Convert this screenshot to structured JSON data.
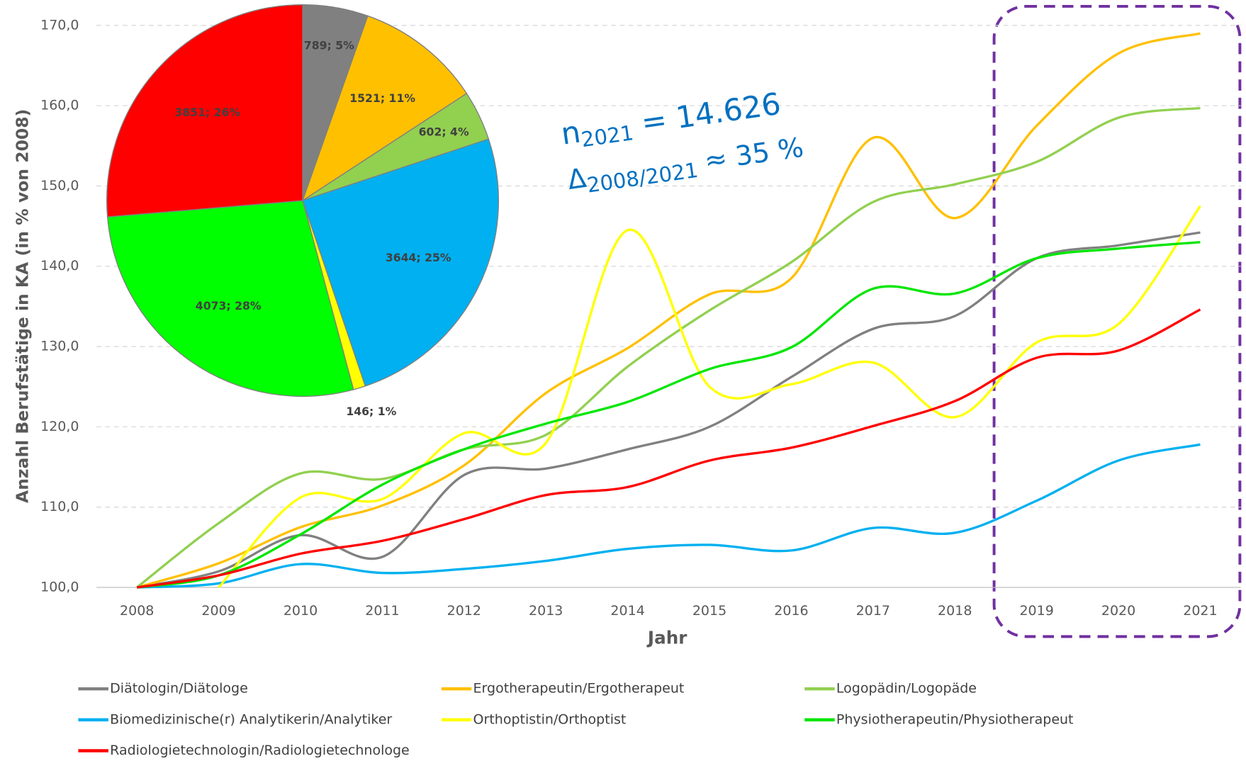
{
  "chart_data": [
    {
      "type": "line",
      "x_label": "Jahr",
      "y_label": "Anzahl Berufstätige in KA (in % von 2008)",
      "categories": [
        "2008",
        "2009",
        "2010",
        "2011",
        "2012",
        "2013",
        "2014",
        "2015",
        "2016",
        "2017",
        "2018",
        "2019",
        "2020",
        "2021"
      ],
      "ylim": [
        100,
        170
      ],
      "yticks": [
        {
          "value": 100,
          "label": "100,0"
        },
        {
          "value": 110,
          "label": "110,0"
        },
        {
          "value": 120,
          "label": "120,0"
        },
        {
          "value": 130,
          "label": "130,0"
        },
        {
          "value": 140,
          "label": "140,0"
        },
        {
          "value": 150,
          "label": "150,0"
        },
        {
          "value": 160,
          "label": "160,0"
        },
        {
          "value": 170,
          "label": "170,0"
        }
      ],
      "grid": true,
      "legend": "bottom",
      "annotations": [
        {
          "text": "n",
          "sub": "2021",
          "rest": "= 14.626"
        },
        {
          "text": "Δ",
          "sub": "2008/2021",
          "rest": "≈ 35 %"
        }
      ],
      "series": [
        {
          "name": "Diätologin/Diätologe",
          "color": "#808080",
          "values": [
            100,
            102,
            106.5,
            103.8,
            114,
            114.8,
            117.2,
            120,
            126.2,
            132.2,
            133.8,
            141,
            142.6,
            144.2
          ]
        },
        {
          "name": "Ergotherapeutin/Ergotherapeut",
          "color": "#FFC000",
          "values": [
            100,
            103,
            107.5,
            110.2,
            115.2,
            124.2,
            129.8,
            136.5,
            138.5,
            156,
            146,
            157.5,
            166.5,
            169
          ]
        },
        {
          "name": "Logopädin/Logopäde",
          "color": "#92D050",
          "values": [
            100,
            108,
            114.2,
            113.5,
            117.2,
            119,
            127.5,
            134.5,
            140.5,
            148,
            150.2,
            153,
            158.5,
            159.7
          ]
        },
        {
          "name": "Biomedizinische(r) Analytikerin/Analytiker",
          "color": "#00B0F0",
          "values": [
            100,
            100.5,
            102.9,
            101.8,
            102.3,
            103.3,
            104.8,
            105.3,
            104.6,
            107.4,
            106.8,
            110.8,
            115.8,
            117.8
          ]
        },
        {
          "name": "Orthoptistin/Orthoptist",
          "color": "#FFFF00",
          "values": [
            null,
            100,
            111.2,
            111,
            119.2,
            118,
            144.5,
            125,
            125.3,
            128,
            121.2,
            130.5,
            132.8,
            147.5
          ]
        },
        {
          "name": "Physiotherapeutin/Physiotherapeut",
          "color": "#00E600",
          "values": [
            100,
            101.5,
            106.6,
            112.8,
            117.2,
            120.4,
            123.1,
            127.2,
            129.9,
            137.2,
            136.6,
            141,
            142.2,
            143
          ]
        },
        {
          "name": "Radiologietechnologin/Radiologietechnologe",
          "color": "#FF0000",
          "values": [
            100,
            101.5,
            104.2,
            105.8,
            108.5,
            111.5,
            112.5,
            115.8,
            117.4,
            120.1,
            123.2,
            128.6,
            129.5,
            134.6
          ]
        }
      ]
    },
    {
      "type": "pie",
      "values": [
        789,
        1521,
        602,
        3644,
        146,
        4073,
        3851
      ],
      "value_labels": [
        "789; 5%",
        "1521; 11%",
        "602; 4%",
        "3644; 25%",
        "146; 1%",
        "4073; 28%",
        "3851; 26%"
      ],
      "colors": [
        "#808080",
        "#FFC000",
        "#92D050",
        "#00B0F0",
        "#FFFF00",
        "#00FF00",
        "#FF0000"
      ]
    }
  ]
}
